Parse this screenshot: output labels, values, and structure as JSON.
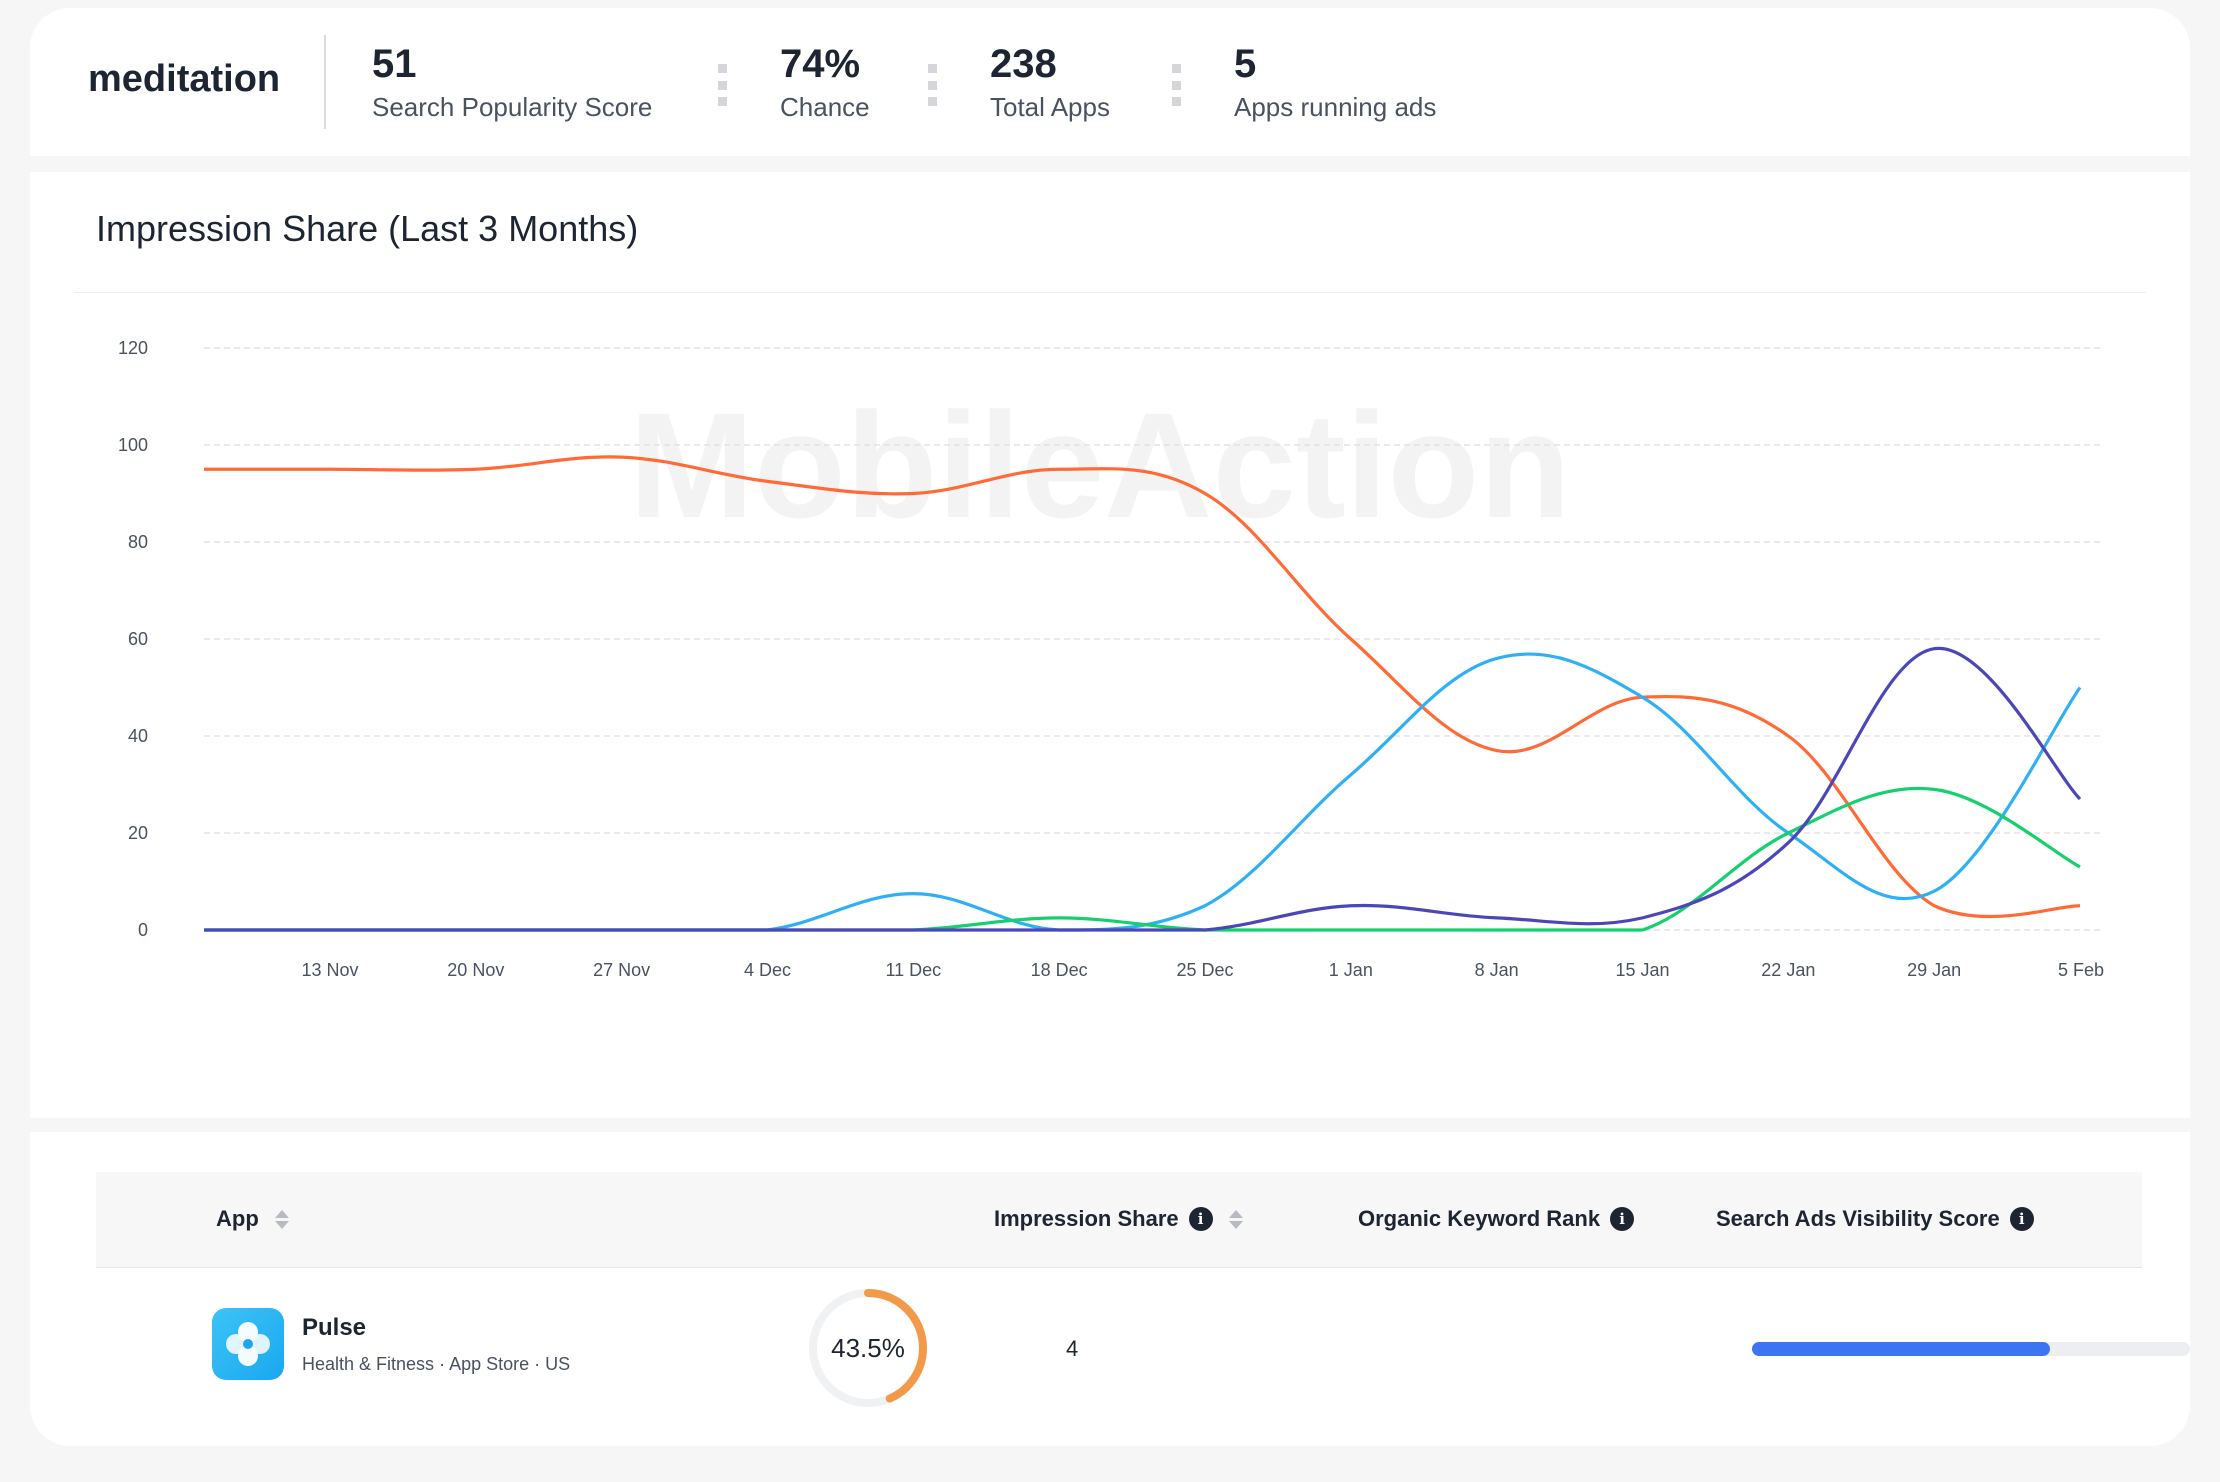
{
  "summary": {
    "keyword": "meditation",
    "metrics": [
      {
        "value": "51",
        "label": "Search Popularity Score"
      },
      {
        "value": "74%",
        "label": "Chance"
      },
      {
        "value": "238",
        "label": "Total Apps"
      },
      {
        "value": "5",
        "label": "Apps running ads"
      }
    ]
  },
  "chart": {
    "title": "Impression Share (Last 3 Months)",
    "watermark": "MobileAction"
  },
  "chart_data": {
    "type": "line",
    "title": "Impression Share (Last 3 Months)",
    "xlabel": "",
    "ylabel": "",
    "ylim": [
      0,
      120
    ],
    "yticks": [
      0,
      20,
      40,
      60,
      80,
      100,
      120
    ],
    "grid": true,
    "x_tick_labels": [
      "13 Nov",
      "20 Nov",
      "27 Nov",
      "4 Dec",
      "11 Dec",
      "18 Dec",
      "25 Dec",
      "1 Jan",
      "8 Jan",
      "15 Jan",
      "22 Jan",
      "29 Jan",
      "5 Feb"
    ],
    "x": [
      "7 Nov",
      "13 Nov",
      "20 Nov",
      "27 Nov",
      "4 Dec",
      "11 Dec",
      "18 Dec",
      "25 Dec",
      "1 Jan",
      "8 Jan",
      "15 Jan",
      "22 Jan",
      "29 Jan",
      "5 Feb"
    ],
    "series": [
      {
        "color": "#ff6a37",
        "values": [
          95,
          95,
          95,
          97.5,
          92.5,
          90,
          95,
          90,
          60,
          37,
          48,
          40,
          5,
          5
        ]
      },
      {
        "color": "#2fb0f5",
        "values": [
          0,
          0,
          0,
          0,
          0,
          7.5,
          0,
          5,
          32,
          56,
          48,
          20,
          8,
          50
        ]
      },
      {
        "color": "#16d06e",
        "values": [
          0,
          0,
          0,
          0,
          0,
          0,
          2.5,
          0,
          0,
          0,
          0,
          20,
          29,
          13
        ]
      },
      {
        "color": "#4b47b9",
        "values": [
          0,
          0,
          0,
          0,
          0,
          0,
          0,
          0,
          5,
          2.5,
          2.5,
          18,
          58,
          27
        ]
      }
    ]
  },
  "table": {
    "headers": {
      "app": "App",
      "impression_share": "Impression Share",
      "organic_rank": "Organic Keyword Rank",
      "visibility": "Search Ads Visibility Score"
    },
    "rows": [
      {
        "app_name": "Pulse",
        "category": "Health & Fitness",
        "store": "App Store",
        "country": "US",
        "impression_share": "43.5%",
        "impression_share_value": 43.5,
        "organic_rank": "4",
        "visibility_score_fraction": 0.68,
        "impression_color": "#f39a4a",
        "visibility_color": "#3c74f2"
      }
    ]
  }
}
